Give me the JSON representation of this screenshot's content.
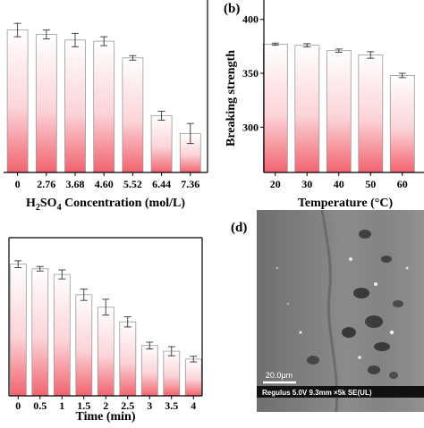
{
  "panels": {
    "b": {
      "label": "(b)"
    },
    "d": {
      "label": "(d)"
    }
  },
  "colors": {
    "bar_top": "#ffffff",
    "bar_bottom": "#f1636f",
    "bar_stroke": "#999999"
  },
  "chart_data": [
    {
      "type": "bar",
      "categories": [
        "0",
        "2.76",
        "3.68",
        "4.60",
        "5.52",
        "6.44",
        "7.36"
      ],
      "values": [
        383,
        379,
        374,
        373,
        358,
        306,
        290
      ],
      "errors": [
        6,
        4,
        6,
        4,
        2,
        4,
        9
      ],
      "xlabel": "H2SO4 Concentration (mol/L)",
      "xlabel_parts": {
        "pre": "H",
        "sub1": "2",
        "mid": "SO",
        "sub2": "4",
        "post": " Concentration (mol/L)"
      },
      "ylabel": "",
      "yticks": [],
      "ylim": [
        255,
        410
      ]
    },
    {
      "type": "bar",
      "categories": [
        "20",
        "30",
        "40",
        "50",
        "60"
      ],
      "values": [
        377,
        376,
        371,
        367,
        348
      ],
      "errors": [
        1,
        1.5,
        1.5,
        3,
        2
      ],
      "xlabel": "Temperature (°C)",
      "ylabel": "Breaking strength",
      "yticks": [
        "300",
        "350",
        "400"
      ],
      "ylim": [
        258,
        418
      ]
    },
    {
      "type": "bar",
      "categories": [
        "0",
        "0.5",
        "1",
        "1.5",
        "2",
        "2.5",
        "3",
        "3.5",
        "4"
      ],
      "values": [
        368,
        360,
        350,
        314,
        292,
        266,
        224,
        214,
        200
      ],
      "errors": [
        6,
        4,
        8,
        10,
        14,
        9,
        6,
        8,
        5
      ],
      "xlabel": "Time (min)",
      "ylabel": "",
      "yticks": [],
      "ylim": [
        135,
        415
      ]
    }
  ],
  "sem_image": {
    "scale_bar": "20.0μm",
    "info_bar": "Regulus 5.0V 9.3mm ×5k SE(UL)"
  }
}
